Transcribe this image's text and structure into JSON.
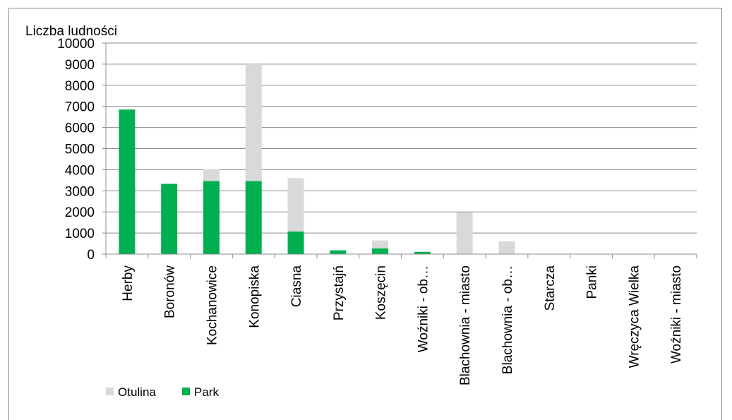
{
  "chart_data": {
    "type": "bar",
    "stacked": true,
    "ylabel": "Liczba ludności",
    "ylim": [
      0,
      10000
    ],
    "yticks": [
      0,
      1000,
      2000,
      3000,
      4000,
      5000,
      6000,
      7000,
      8000,
      9000,
      10000
    ],
    "grid": true,
    "legend_position": "bottom-left",
    "categories": [
      "Herby",
      "Boronów",
      "Kochanowice",
      "Konopiska",
      "Ciasna",
      "Przystajń",
      "Koszęcin",
      "Woźniki - ob…",
      "Blachownia - miasto",
      "Blachownia - ob…",
      "Starcza",
      "Panki",
      "Wręczyca Wielka",
      "Woźniki - miasto"
    ],
    "series": [
      {
        "name": "Park",
        "color": "#00b050",
        "values": [
          6850,
          3330,
          3460,
          3460,
          1070,
          180,
          270,
          110,
          0,
          0,
          0,
          0,
          0,
          0
        ]
      },
      {
        "name": "Otulina",
        "color": "#d9d9d9",
        "values": [
          0,
          0,
          560,
          5540,
          2530,
          0,
          380,
          0,
          1970,
          610,
          0,
          0,
          0,
          0
        ]
      }
    ],
    "legend_order": [
      "Otulina",
      "Park"
    ]
  }
}
